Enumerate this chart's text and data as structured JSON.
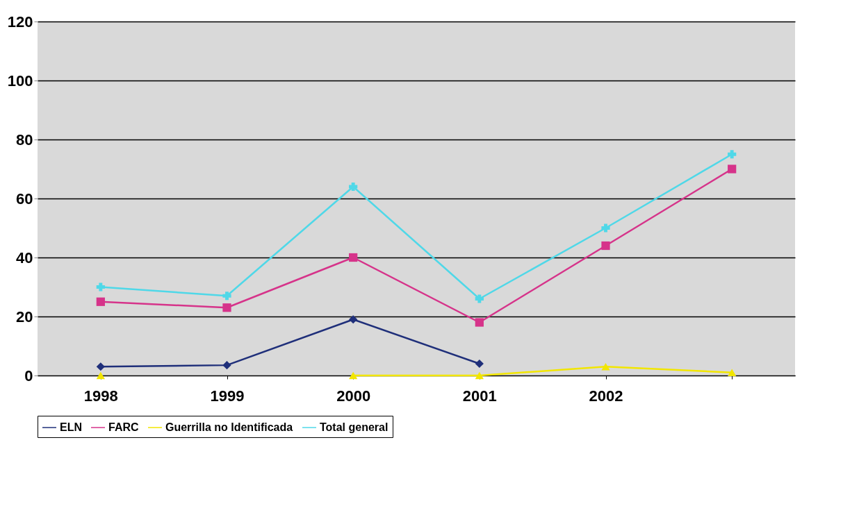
{
  "chart_data": {
    "type": "line",
    "categories": [
      "1998",
      "1999",
      "2000",
      "2001",
      "2002",
      null
    ],
    "series": [
      {
        "name": "ELN",
        "color": "#1f2f7a",
        "marker": "diamond",
        "values": [
          3,
          3.5,
          19,
          4,
          null,
          null
        ]
      },
      {
        "name": "FARC",
        "color": "#d6338a",
        "marker": "square",
        "values": [
          25,
          23,
          40,
          18,
          44,
          70
        ]
      },
      {
        "name": "Guerrilla no Identificada",
        "color": "#f2e600",
        "marker": "triangle",
        "values": [
          0,
          null,
          0,
          0,
          3,
          1
        ]
      },
      {
        "name": "Total general",
        "color": "#4fd8e8",
        "marker": "cross",
        "values": [
          30,
          27,
          64,
          26,
          50,
          75
        ]
      }
    ],
    "ylim": [
      0,
      120
    ],
    "yticks": [
      0,
      20,
      40,
      60,
      80,
      100,
      120
    ],
    "grid": "y",
    "legend": "bottom"
  }
}
